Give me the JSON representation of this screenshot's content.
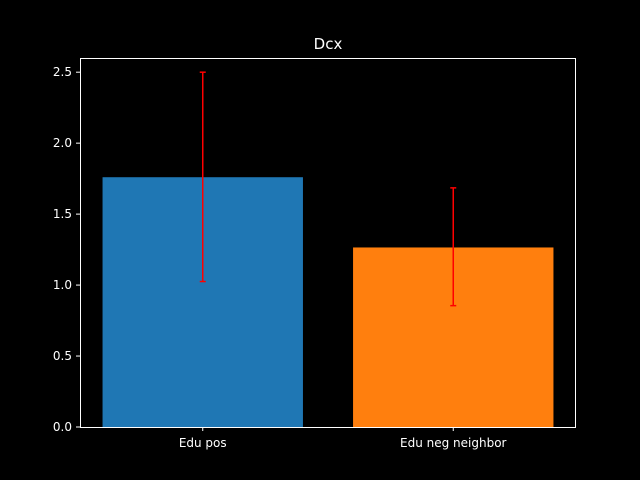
{
  "chart_data": {
    "type": "bar",
    "title": "Dcx",
    "xlabel": "",
    "ylabel": "",
    "categories": [
      "Edu pos",
      "Edu neg neighbor"
    ],
    "values": [
      1.76,
      1.265
    ],
    "error_low": [
      1.025,
      0.855
    ],
    "error_high": [
      2.5,
      1.685
    ],
    "bar_colors": [
      "#1f77b4",
      "#ff7f0e"
    ],
    "error_color": "#ff0000",
    "axis_color": "#ffffff",
    "background": "#000000",
    "ylim": [
      0,
      2.6
    ],
    "yticks": [
      "0.0",
      "0.5",
      "1.0",
      "1.5",
      "2.0",
      "2.5"
    ],
    "grid": false,
    "legend": "none"
  }
}
